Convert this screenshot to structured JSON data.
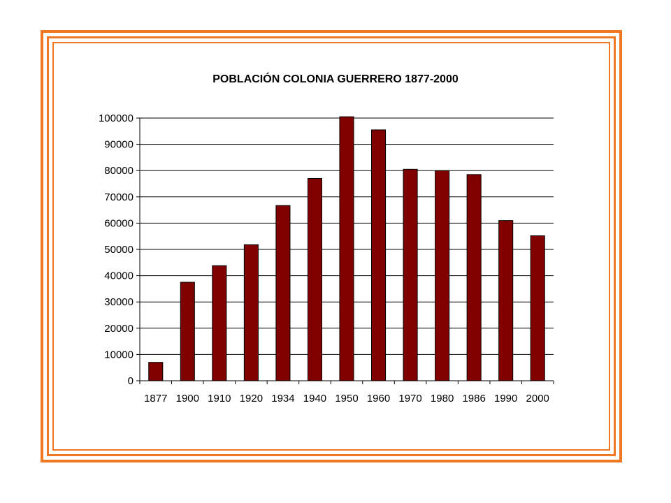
{
  "chart_data": {
    "type": "bar",
    "title": "POBLACIÓN COLONIA GUERRERO 1877-2000",
    "xlabel": "",
    "ylabel": "",
    "categories": [
      "1877",
      "1900",
      "1910",
      "1920",
      "1934",
      "1940",
      "1950",
      "1960",
      "1970",
      "1980",
      "1986",
      "1990",
      "2000"
    ],
    "values": [
      7000,
      37500,
      43800,
      51800,
      66700,
      77000,
      100500,
      95500,
      80500,
      80000,
      78500,
      61000,
      55200
    ],
    "ylim": [
      0,
      100000
    ],
    "yticks": [
      "0",
      "10000",
      "20000",
      "30000",
      "40000",
      "50000",
      "60000",
      "70000",
      "80000",
      "90000",
      "100000"
    ],
    "grid": "horizontal",
    "legend": "none",
    "colors": {
      "bar": "#800000",
      "frame": "#f07823",
      "grid": "#000000"
    }
  }
}
